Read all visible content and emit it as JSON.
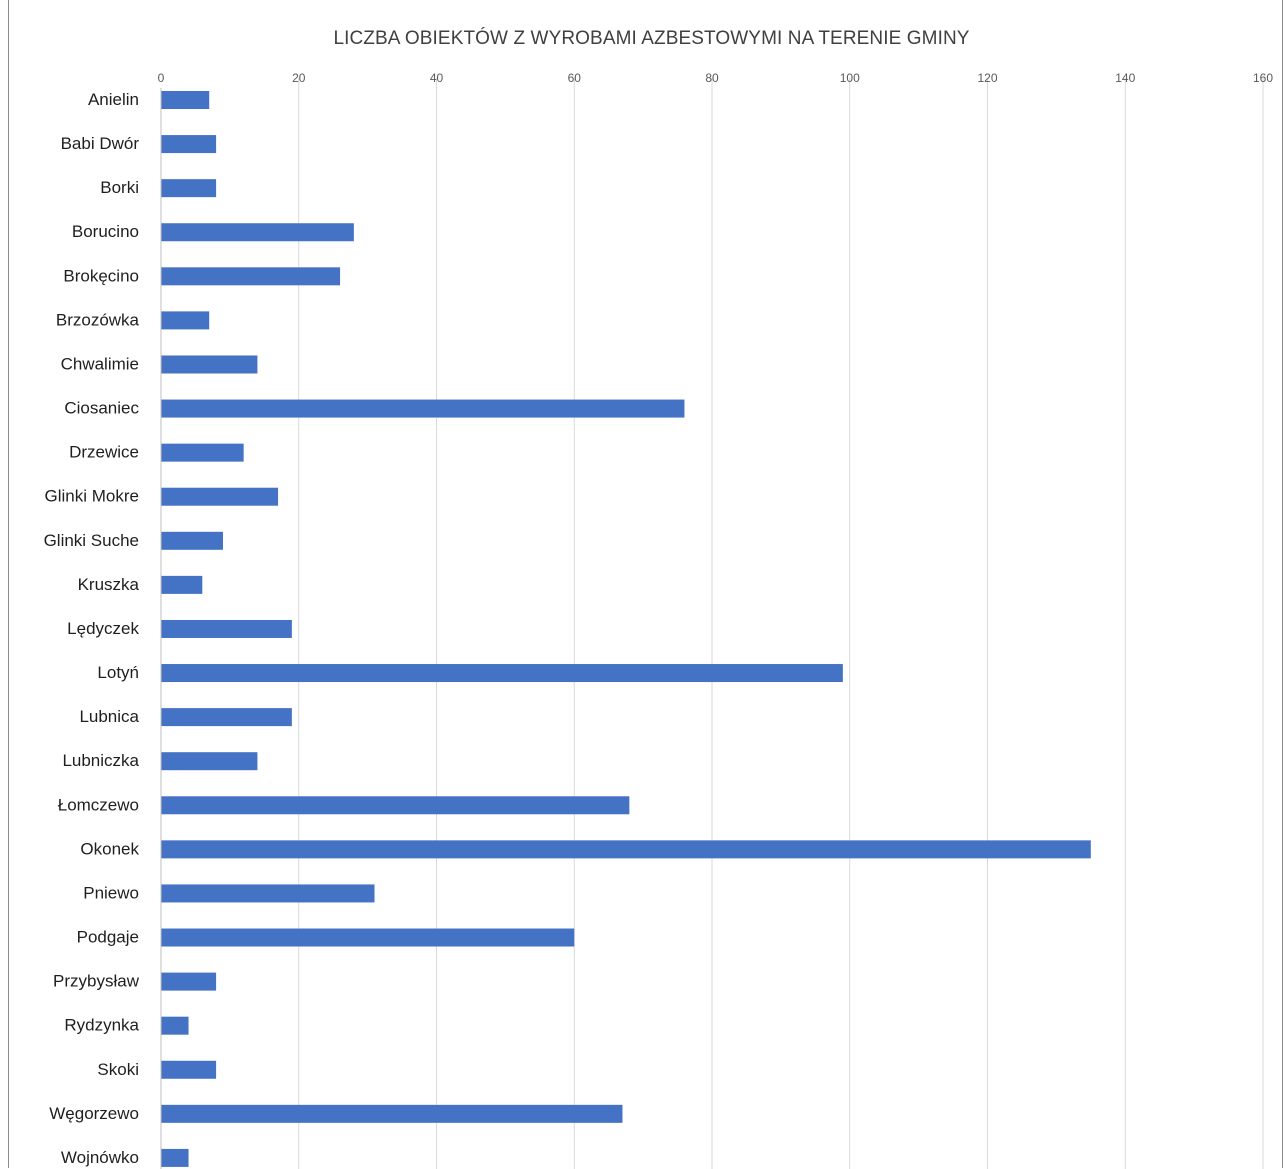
{
  "chart_data": {
    "type": "bar",
    "orientation": "horizontal",
    "title": "LICZBA OBIEKTÓW Z WYROBAMI AZBESTOWYMI NA TERENIE GMINY",
    "xlim": [
      0,
      160
    ],
    "xticks": [
      0,
      20,
      40,
      60,
      80,
      100,
      120,
      140,
      160
    ],
    "grid": true,
    "bar_color": "#4472c4",
    "categories": [
      "Anielin",
      "Babi Dwór",
      "Borki",
      "Borucino",
      "Brokęcino",
      "Brzozówka",
      "Chwalimie",
      "Ciosaniec",
      "Drzewice",
      "Glinki Mokre",
      "Glinki Suche",
      "Kruszka",
      "Lędyczek",
      "Lotyń",
      "Lubnica",
      "Lubniczka",
      "Łomczewo",
      "Okonek",
      "Pniewo",
      "Podgaje",
      "Przybysław",
      "Rydzynka",
      "Skoki",
      "Węgorzewo",
      "Wojnówko"
    ],
    "values": [
      7,
      8,
      8,
      28,
      26,
      7,
      14,
      76,
      12,
      17,
      9,
      6,
      19,
      99,
      19,
      14,
      68,
      135,
      31,
      60,
      8,
      4,
      8,
      67,
      4
    ]
  }
}
